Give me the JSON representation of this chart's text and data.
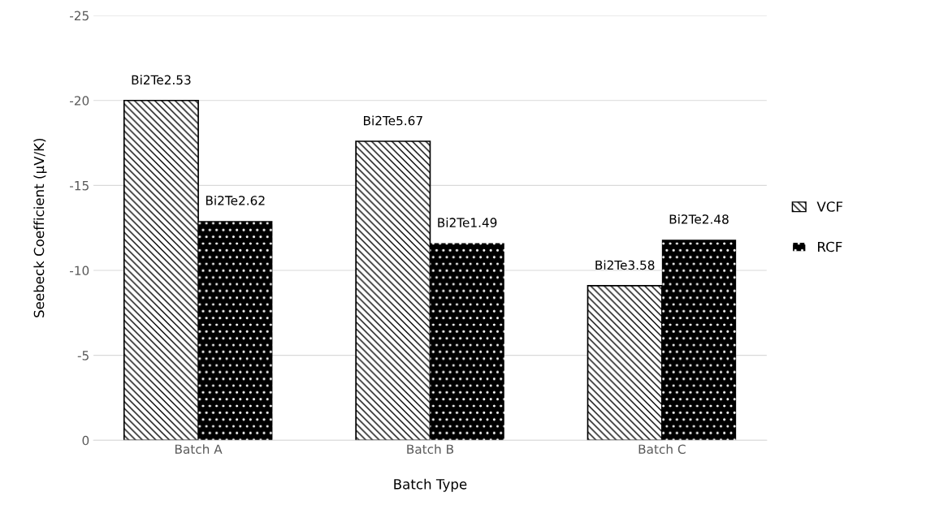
{
  "chart_data": {
    "type": "bar",
    "xlabel": "Batch Type",
    "ylabel": "Seebeck Coefficient (µV/K)",
    "categories": [
      "Batch A",
      "Batch B",
      "Batch C"
    ],
    "series": [
      {
        "name": "VCF",
        "color": "#000000",
        "values": [
          -20.0,
          -17.6,
          -9.1
        ],
        "value_labels": [
          "Bi2Te2.53",
          "Bi2Te5.67",
          "Bi2Te3.58"
        ]
      },
      {
        "name": "RCF",
        "color": "#000000",
        "values": [
          -12.9,
          -11.6,
          -11.8
        ],
        "value_labels": [
          "Bi2Te2.62",
          "Bi2Te1.49",
          "Bi2Te2.48"
        ]
      }
    ],
    "ylim": [
      0,
      -25
    ],
    "yticks": [
      0,
      -5,
      -10,
      -15,
      -20,
      -25
    ],
    "grid": "y",
    "legend": "right"
  }
}
